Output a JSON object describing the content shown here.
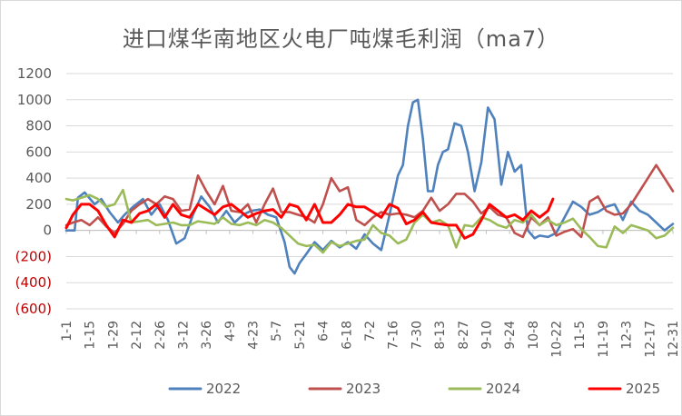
{
  "chart_data": {
    "type": "line",
    "title": "进口煤华南地区火电厂吨煤毛利润（ma7）",
    "xlabel": "",
    "ylabel": "",
    "ylim": [
      -600,
      1200
    ],
    "yticks": [
      {
        "value": 1200,
        "label": "1200"
      },
      {
        "value": 1000,
        "label": "1000"
      },
      {
        "value": 800,
        "label": "800"
      },
      {
        "value": 600,
        "label": "600"
      },
      {
        "value": 400,
        "label": "400"
      },
      {
        "value": 200,
        "label": "200"
      },
      {
        "value": 0,
        "label": "0"
      },
      {
        "value": -200,
        "label": "(200)"
      },
      {
        "value": -400,
        "label": "(400)"
      },
      {
        "value": -600,
        "label": "(600)"
      }
    ],
    "xtick_labels": [
      "1-1",
      "1-15",
      "1-29",
      "2-12",
      "2-26",
      "3-12",
      "3-26",
      "4-9",
      "4-23",
      "5-7",
      "5-21",
      "6-4",
      "6-18",
      "7-2",
      "7-16",
      "7-30",
      "8-13",
      "8-27",
      "9-10",
      "9-24",
      "10-8",
      "10-22",
      "11-5",
      "11-19",
      "12-3",
      "12-17",
      "12-31"
    ],
    "x_day_range": [
      1,
      365
    ],
    "legend_position": "bottom",
    "series": [
      {
        "name": "2022",
        "color": "#4f81bd",
        "x": [
          1,
          6,
          8,
          12,
          18,
          22,
          27,
          32,
          36,
          41,
          47,
          52,
          57,
          62,
          67,
          72,
          77,
          82,
          87,
          92,
          97,
          102,
          107,
          112,
          117,
          122,
          127,
          132,
          135,
          138,
          141,
          145,
          150,
          155,
          160,
          165,
          170,
          175,
          180,
          185,
          190,
          195,
          200,
          203,
          206,
          209,
          212,
          215,
          218,
          221,
          224,
          227,
          230,
          234,
          238,
          242,
          246,
          250,
          254,
          258,
          262,
          266,
          270,
          274,
          276,
          278,
          280,
          282,
          285,
          290,
          295,
          300,
          305,
          310,
          315,
          320,
          325,
          330,
          335,
          340,
          345,
          350,
          355,
          360,
          365
        ],
        "values": [
          0,
          0,
          250,
          290,
          200,
          240,
          140,
          60,
          120,
          180,
          240,
          120,
          200,
          80,
          -100,
          -60,
          120,
          260,
          180,
          60,
          150,
          60,
          120,
          150,
          160,
          120,
          100,
          -90,
          -280,
          -330,
          -250,
          -180,
          -90,
          -150,
          -80,
          -130,
          -90,
          -140,
          -30,
          -100,
          -150,
          120,
          420,
          500,
          800,
          980,
          1000,
          700,
          300,
          300,
          500,
          600,
          620,
          820,
          800,
          600,
          300,
          520,
          940,
          850,
          350,
          600,
          450,
          500,
          240,
          0,
          -30,
          -60,
          -40,
          -50,
          -20,
          100,
          220,
          180,
          120,
          140,
          180,
          200,
          80,
          220,
          150,
          120,
          60,
          0,
          50
        ]
      },
      {
        "name": "2023",
        "color": "#c0504d",
        "x": [
          1,
          5,
          10,
          15,
          20,
          25,
          30,
          35,
          40,
          45,
          50,
          55,
          60,
          65,
          70,
          75,
          80,
          85,
          90,
          95,
          100,
          105,
          110,
          115,
          120,
          125,
          130,
          135,
          140,
          145,
          150,
          155,
          160,
          165,
          170,
          175,
          180,
          185,
          190,
          195,
          200,
          205,
          210,
          215,
          220,
          225,
          230,
          235,
          240,
          245,
          250,
          255,
          260,
          265,
          270,
          275,
          280,
          285,
          290,
          295,
          300,
          305,
          310,
          315,
          320,
          325,
          330,
          335,
          340,
          345,
          350,
          355,
          360,
          365
        ],
        "values": [
          40,
          60,
          80,
          40,
          100,
          30,
          -20,
          50,
          150,
          200,
          240,
          200,
          260,
          240,
          150,
          160,
          420,
          300,
          200,
          340,
          150,
          140,
          200,
          60,
          200,
          320,
          140,
          140,
          120,
          100,
          60,
          200,
          400,
          300,
          330,
          80,
          40,
          100,
          140,
          120,
          130,
          120,
          100,
          150,
          250,
          150,
          200,
          280,
          280,
          220,
          130,
          180,
          120,
          100,
          -20,
          -50,
          100,
          40,
          100,
          -40,
          -10,
          10,
          -50,
          220,
          260,
          150,
          120,
          130,
          200,
          300,
          400,
          500,
          400,
          300
        ]
      },
      {
        "name": "2024",
        "color": "#9bbb59",
        "x": [
          1,
          5,
          10,
          15,
          20,
          25,
          30,
          35,
          40,
          45,
          50,
          55,
          60,
          65,
          70,
          75,
          80,
          85,
          90,
          95,
          100,
          105,
          110,
          115,
          120,
          125,
          130,
          135,
          140,
          145,
          150,
          155,
          160,
          165,
          170,
          175,
          180,
          185,
          190,
          195,
          200,
          205,
          210,
          215,
          220,
          225,
          230,
          235,
          240,
          245,
          250,
          255,
          260,
          265,
          270,
          275,
          280,
          285,
          290,
          295,
          300,
          305,
          310,
          315,
          320,
          325,
          330,
          335,
          340,
          345,
          350,
          355,
          360,
          365
        ],
        "values": [
          240,
          230,
          250,
          270,
          240,
          180,
          200,
          310,
          60,
          70,
          80,
          40,
          50,
          60,
          40,
          40,
          70,
          60,
          50,
          100,
          50,
          40,
          60,
          40,
          80,
          60,
          20,
          -40,
          -100,
          -120,
          -110,
          -170,
          -90,
          -120,
          -100,
          -80,
          -70,
          40,
          -20,
          -40,
          -100,
          -70,
          60,
          120,
          60,
          80,
          40,
          -130,
          40,
          30,
          100,
          80,
          40,
          20,
          80,
          60,
          120,
          40,
          80,
          40,
          60,
          90,
          10,
          -50,
          -120,
          -130,
          30,
          -20,
          40,
          20,
          0,
          -60,
          -40,
          20
        ]
      },
      {
        "name": "2025",
        "color": "#ff0000",
        "x": [
          1,
          5,
          10,
          15,
          20,
          25,
          30,
          35,
          40,
          45,
          50,
          55,
          60,
          65,
          70,
          75,
          80,
          85,
          90,
          95,
          100,
          105,
          110,
          115,
          120,
          125,
          130,
          135,
          140,
          145,
          150,
          155,
          160,
          165,
          170,
          175,
          180,
          185,
          190,
          195,
          200,
          205,
          210,
          215,
          220,
          225,
          230,
          235,
          240,
          245,
          250,
          255,
          260,
          265,
          270,
          275,
          280,
          285,
          290,
          293
        ],
        "values": [
          20,
          120,
          200,
          200,
          150,
          40,
          -50,
          80,
          60,
          130,
          150,
          200,
          100,
          200,
          120,
          100,
          200,
          160,
          120,
          180,
          200,
          150,
          100,
          130,
          150,
          160,
          100,
          200,
          180,
          80,
          200,
          60,
          60,
          120,
          200,
          180,
          180,
          140,
          100,
          200,
          170,
          50,
          80,
          140,
          60,
          50,
          40,
          40,
          -60,
          -30,
          80,
          200,
          150,
          100,
          120,
          80,
          150,
          100,
          150,
          240
        ]
      }
    ]
  }
}
